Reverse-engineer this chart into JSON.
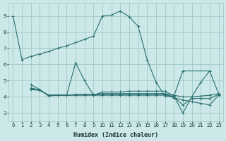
{
  "xlabel": "Humidex (Indice chaleur)",
  "xlim": [
    -0.5,
    23.5
  ],
  "ylim": [
    2.5,
    9.8
  ],
  "yticks": [
    3,
    4,
    5,
    6,
    7,
    8,
    9
  ],
  "xticks": [
    0,
    1,
    2,
    3,
    4,
    5,
    6,
    7,
    8,
    9,
    10,
    11,
    12,
    13,
    14,
    15,
    16,
    17,
    18,
    19,
    20,
    21,
    22,
    23
  ],
  "bg_color": "#cde8e8",
  "grid_color": "#a0c8c8",
  "line_color": "#2a7070",
  "curve1_x": [
    0,
    1,
    2,
    3,
    4,
    5,
    6,
    7,
    8,
    9,
    10,
    11,
    12,
    13,
    14,
    15,
    16,
    17,
    18,
    19,
    22
  ],
  "curve1_y": [
    9.0,
    6.3,
    6.5,
    6.65,
    6.8,
    7.0,
    7.15,
    7.35,
    7.55,
    7.75,
    9.0,
    9.05,
    9.3,
    8.95,
    8.35,
    6.3,
    4.9,
    4.05,
    4.05,
    5.6,
    5.6
  ],
  "curve2_x": [
    2,
    3,
    4,
    5,
    6,
    7,
    8,
    9,
    10,
    11,
    12,
    13,
    14,
    15,
    16,
    17,
    18,
    19,
    20,
    21,
    22,
    23
  ],
  "curve2_y": [
    4.75,
    4.45,
    4.05,
    4.1,
    4.1,
    6.1,
    5.0,
    4.1,
    4.3,
    4.3,
    4.3,
    4.35,
    4.35,
    4.35,
    4.35,
    4.35,
    4.05,
    3.0,
    4.0,
    4.9,
    5.6,
    4.2
  ],
  "curve3_x": [
    2,
    3,
    4,
    5,
    6,
    7,
    8,
    9,
    10,
    11,
    12,
    13,
    14,
    15,
    16,
    17,
    18,
    19,
    20,
    21,
    22,
    23
  ],
  "curve3_y": [
    4.5,
    4.4,
    4.1,
    4.1,
    4.1,
    4.15,
    4.15,
    4.15,
    4.2,
    4.2,
    4.2,
    4.2,
    4.2,
    4.2,
    4.2,
    4.2,
    4.1,
    4.0,
    4.0,
    4.05,
    4.1,
    4.2
  ],
  "curve4_x": [
    2,
    3,
    4,
    5,
    6,
    7,
    8,
    9,
    10,
    11,
    12,
    13,
    14,
    15,
    16,
    17,
    18,
    19,
    20,
    21,
    22,
    23
  ],
  "curve4_y": [
    4.45,
    4.4,
    4.1,
    4.1,
    4.1,
    4.1,
    4.1,
    4.1,
    4.1,
    4.1,
    4.1,
    4.1,
    4.1,
    4.1,
    4.1,
    4.1,
    3.95,
    3.8,
    3.7,
    3.6,
    3.5,
    4.1
  ],
  "curve5_x": [
    2,
    3,
    4,
    5,
    6,
    7,
    8,
    9,
    10,
    11,
    12,
    13,
    14,
    15,
    16,
    17,
    18,
    19,
    20,
    21,
    22,
    23
  ],
  "curve5_y": [
    4.55,
    4.42,
    4.1,
    4.1,
    4.1,
    4.12,
    4.12,
    4.12,
    4.15,
    4.15,
    4.15,
    4.15,
    4.15,
    4.15,
    4.15,
    4.15,
    4.0,
    3.5,
    3.9,
    3.9,
    3.9,
    4.15
  ]
}
